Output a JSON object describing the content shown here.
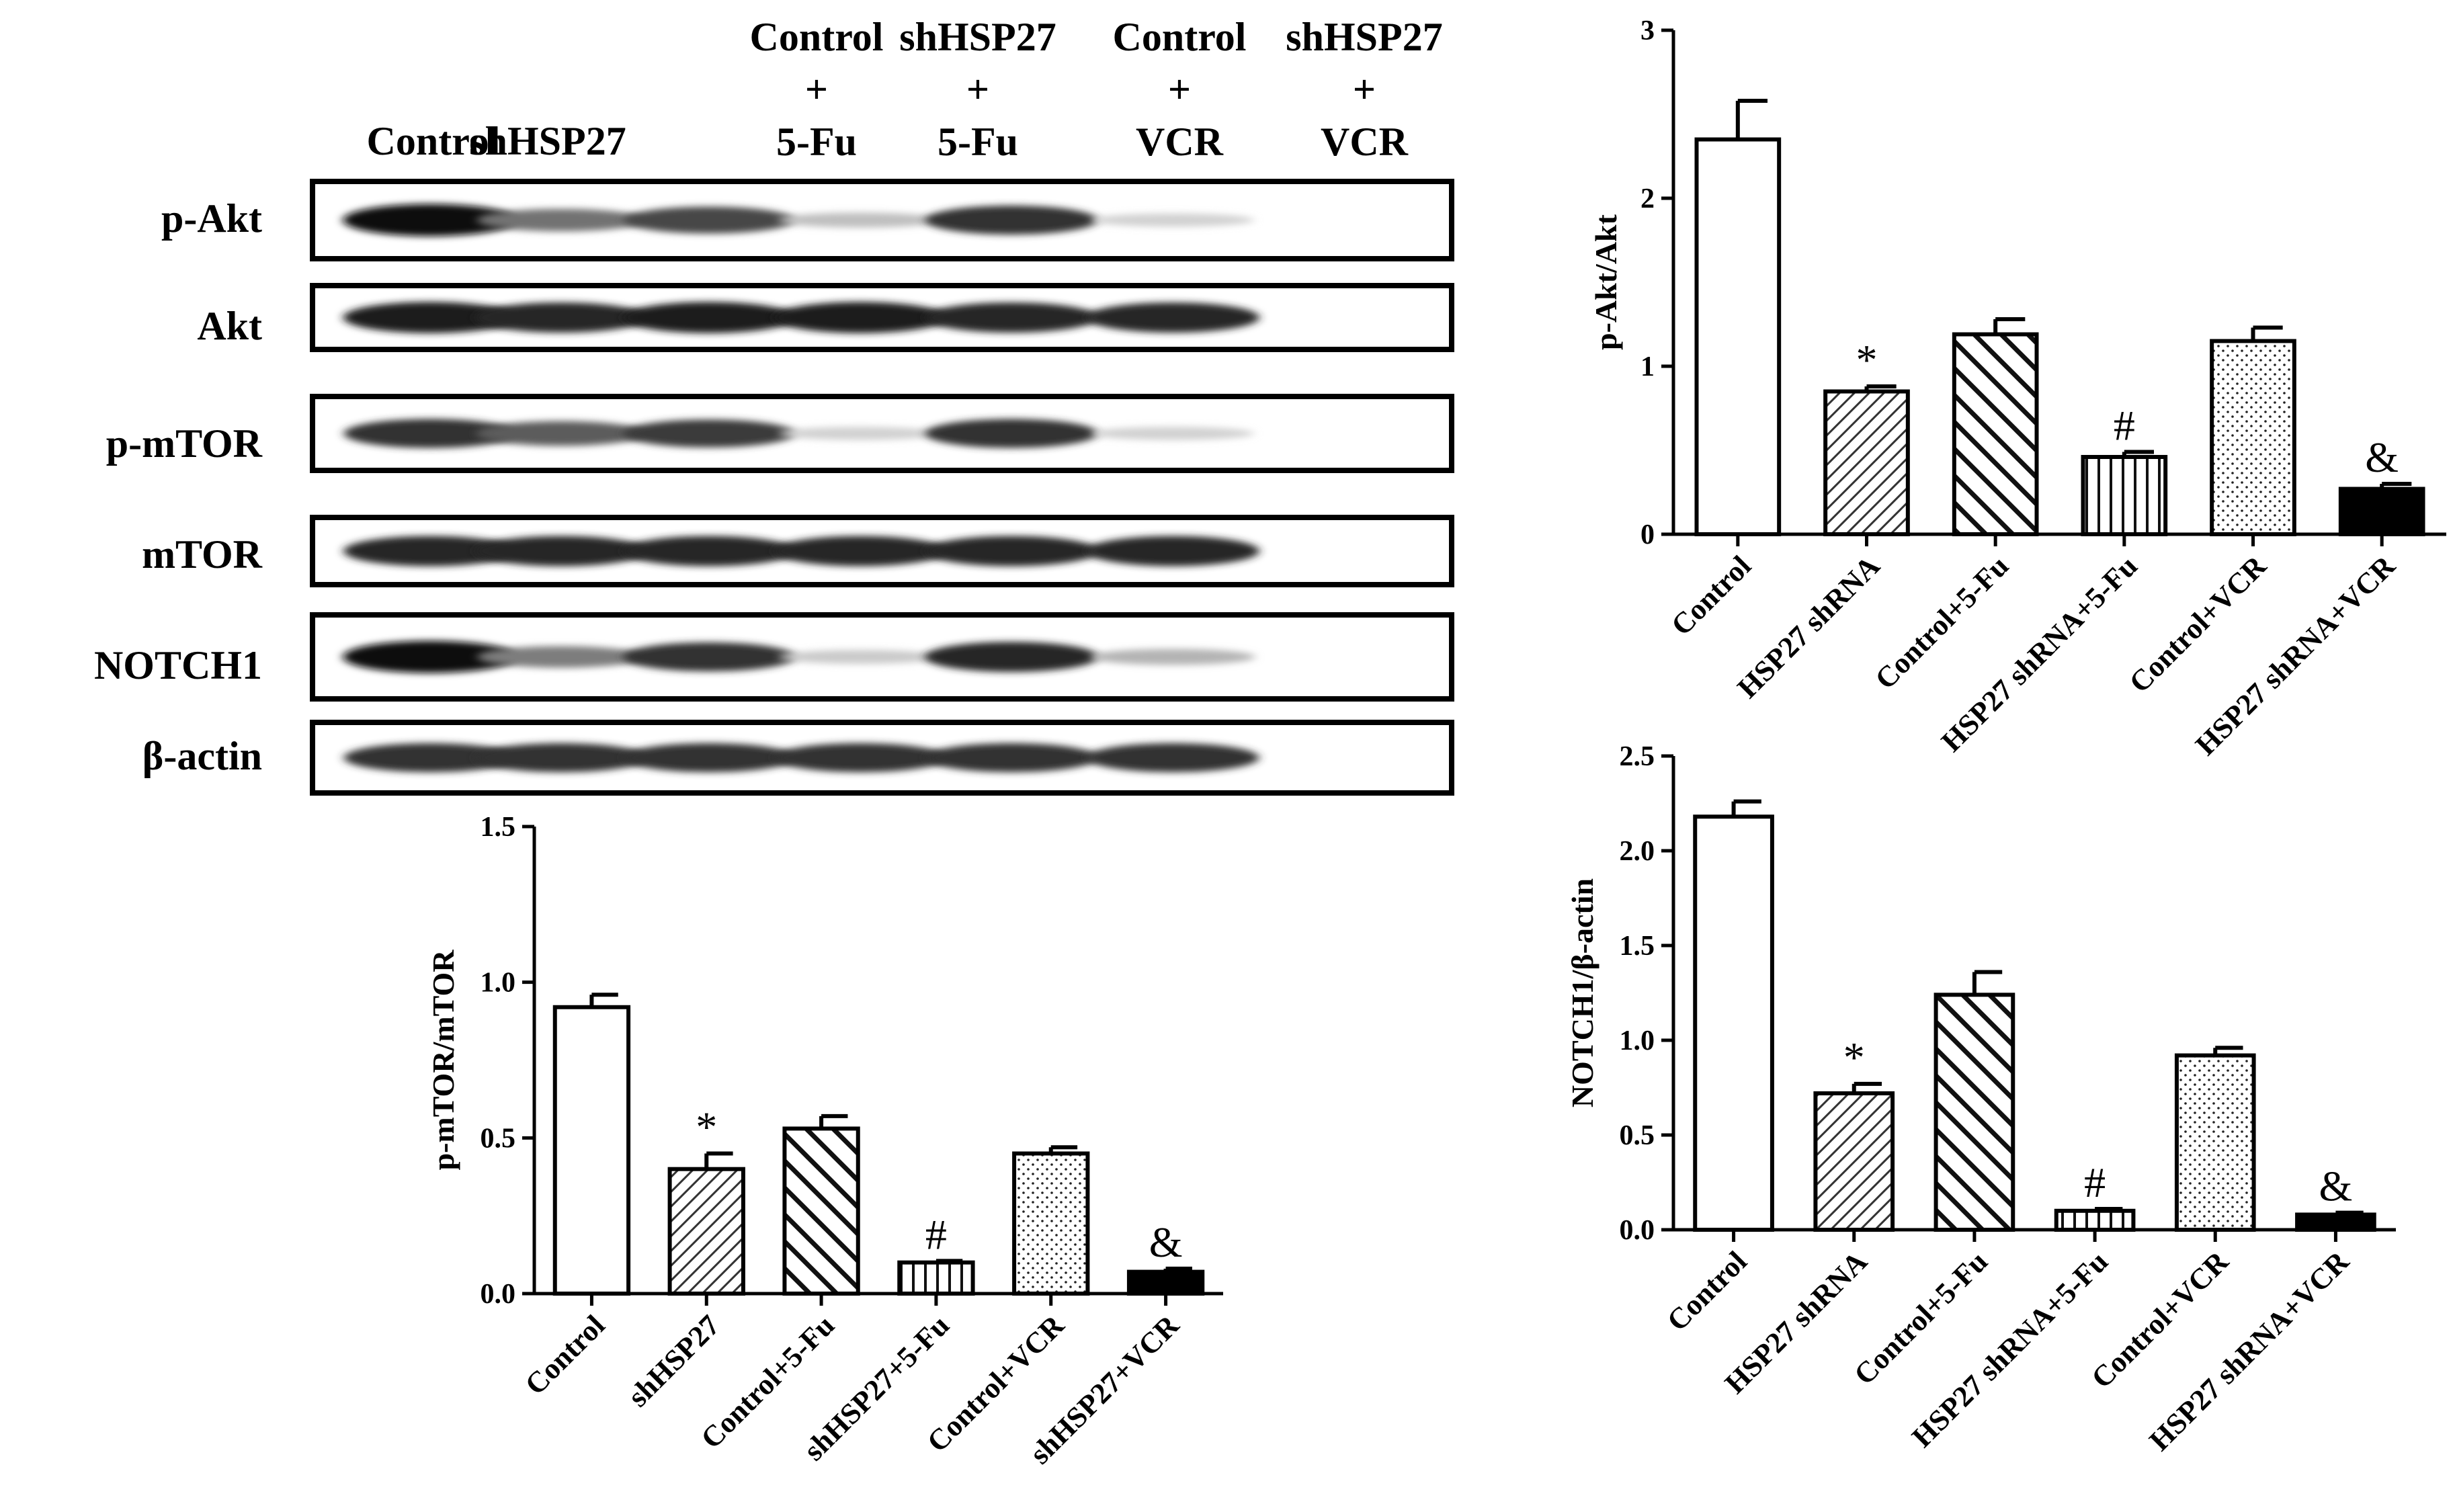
{
  "blot": {
    "lanes": [
      {
        "lines": [
          "Control"
        ]
      },
      {
        "lines": [
          "shHSP27"
        ]
      },
      {
        "lines": [
          "Control",
          "+",
          "5-Fu"
        ]
      },
      {
        "lines": [
          "shHSP27",
          "+",
          "5-Fu"
        ]
      },
      {
        "lines": [
          "Control",
          "+",
          "VCR"
        ]
      },
      {
        "lines": [
          "shHSP27",
          "+",
          "VCR"
        ]
      }
    ],
    "rows": [
      {
        "label": "p-Akt",
        "intensity": [
          1.0,
          0.55,
          0.75,
          0.2,
          0.85,
          0.12
        ]
      },
      {
        "label": "Akt",
        "intensity": [
          0.95,
          0.9,
          0.95,
          0.95,
          0.9,
          0.9
        ]
      },
      {
        "label": "p-mTOR",
        "intensity": [
          0.85,
          0.65,
          0.8,
          0.12,
          0.85,
          0.12
        ]
      },
      {
        "label": "mTOR",
        "intensity": [
          0.9,
          0.9,
          0.9,
          0.9,
          0.9,
          0.9
        ]
      },
      {
        "label": "NOTCH1",
        "intensity": [
          1.0,
          0.5,
          0.85,
          0.15,
          0.9,
          0.25
        ]
      },
      {
        "label": "β-actin",
        "intensity": [
          0.85,
          0.85,
          0.85,
          0.85,
          0.85,
          0.85
        ]
      }
    ]
  },
  "chart_data": [
    {
      "id": "akt",
      "type": "bar",
      "ylabel": "p-Akt/Akt",
      "ylim": [
        0,
        3
      ],
      "yticks": [
        "0",
        "1",
        "2",
        "3"
      ],
      "categories": [
        "Control",
        "HSP27 shRNA",
        "Control+5-Fu",
        "HSP27 shRNA+5-Fu",
        "Control+VCR",
        "HSP27 shRNA+VCR"
      ],
      "values": [
        2.35,
        0.85,
        1.19,
        0.46,
        1.15,
        0.27
      ],
      "errors": [
        0.23,
        0.03,
        0.09,
        0.03,
        0.08,
        0.03
      ],
      "annotations": [
        "",
        "*",
        "",
        "#",
        "",
        "&"
      ],
      "patterns": [
        "none",
        "diag-right",
        "diag-left",
        "vertical",
        "dots",
        "solid"
      ]
    },
    {
      "id": "mtor",
      "type": "bar",
      "ylabel": "p-mTOR/mTOR",
      "ylim": [
        0,
        1.5
      ],
      "yticks": [
        "0.0",
        "0.5",
        "1.0",
        "1.5"
      ],
      "categories": [
        "Control",
        "shHSP27",
        "Control+5-Fu",
        "shHSP27+5-Fu",
        "Control+VCR",
        "shHSP27+VCR"
      ],
      "values": [
        0.92,
        0.4,
        0.53,
        0.1,
        0.45,
        0.07
      ],
      "errors": [
        0.04,
        0.05,
        0.04,
        0.005,
        0.02,
        0.01
      ],
      "annotations": [
        "",
        "*",
        "",
        "#",
        "",
        "&"
      ],
      "patterns": [
        "none",
        "diag-right",
        "diag-left",
        "vertical",
        "dots",
        "solid"
      ]
    },
    {
      "id": "notch",
      "type": "bar",
      "ylabel": "NOTCH1/β-actin",
      "ylim": [
        0,
        2.5
      ],
      "yticks": [
        "0.0",
        "0.5",
        "1.0",
        "1.5",
        "2.0",
        "2.5"
      ],
      "categories": [
        "Control",
        "HSP27 shRNA",
        "Control+5-Fu",
        "HSP27 shRNA+5-Fu",
        "Control+VCR",
        "HSP27 shRNA+VCR"
      ],
      "values": [
        2.18,
        0.72,
        1.24,
        0.1,
        0.92,
        0.08
      ],
      "errors": [
        0.08,
        0.05,
        0.12,
        0.01,
        0.04,
        0.01
      ],
      "annotations": [
        "",
        "*",
        "",
        "#",
        "",
        "&"
      ],
      "patterns": [
        "none",
        "diag-right",
        "diag-left",
        "vertical",
        "dots",
        "solid"
      ]
    }
  ]
}
